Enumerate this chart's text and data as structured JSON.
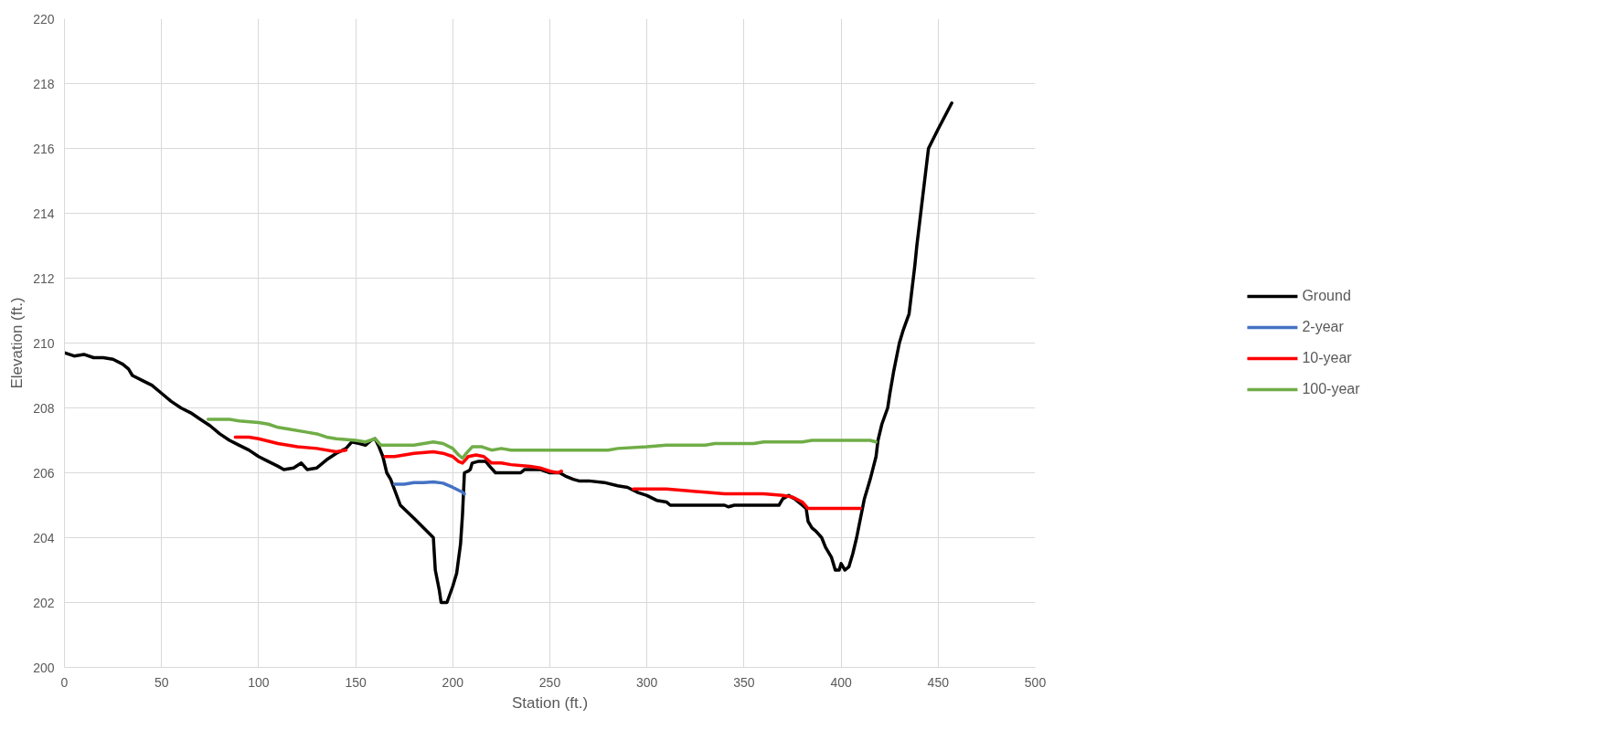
{
  "chart_data": {
    "type": "line",
    "xlabel": "Station (ft.)",
    "ylabel": "Elevation (ft.)",
    "xlim": [
      0,
      500
    ],
    "xticks": [
      0,
      50,
      100,
      150,
      200,
      250,
      300,
      350,
      400,
      450,
      500
    ],
    "ylim": [
      200,
      220
    ],
    "yticks": [
      200,
      202,
      204,
      206,
      208,
      210,
      212,
      214,
      216,
      218,
      220
    ],
    "grid": true,
    "legend": "right",
    "marker": "none",
    "line_style": "solid",
    "series": [
      {
        "name": "Ground",
        "color": "#000000",
        "x": [
          0,
          5,
          10,
          15,
          20,
          25,
          30,
          33,
          35,
          40,
          45,
          50,
          55,
          60,
          65,
          70,
          75,
          80,
          85,
          90,
          95,
          100,
          105,
          110,
          113,
          118,
          122,
          125,
          130,
          135,
          140,
          145,
          148,
          152,
          155,
          158,
          160,
          162,
          164,
          166,
          168,
          173,
          180,
          190,
          191,
          193,
          194,
          197,
          200,
          202,
          204,
          205,
          206,
          208,
          209,
          210,
          213,
          217,
          219,
          222,
          230,
          235,
          237,
          245,
          250,
          255,
          258,
          262,
          265,
          270,
          278,
          285,
          290,
          295,
          300,
          305,
          310,
          312,
          320,
          340,
          342,
          345,
          360,
          368,
          370,
          373,
          376,
          380,
          382,
          383,
          385,
          387,
          390,
          392,
          395,
          397,
          399,
          400,
          402,
          404,
          406,
          408,
          410,
          412,
          415,
          418,
          419,
          421,
          424,
          425,
          427,
          430,
          432,
          435,
          436,
          438,
          439,
          441,
          443,
          445,
          450,
          457
        ],
        "values": [
          209.7,
          209.6,
          209.65,
          209.55,
          209.55,
          209.5,
          209.35,
          209.2,
          209.0,
          208.85,
          208.7,
          208.45,
          208.2,
          208.0,
          207.85,
          207.65,
          207.45,
          207.2,
          207.0,
          206.85,
          206.7,
          206.5,
          206.35,
          206.2,
          206.1,
          206.15,
          206.3,
          206.1,
          206.15,
          206.4,
          206.6,
          206.75,
          206.95,
          206.9,
          206.85,
          207.0,
          207.05,
          206.8,
          206.5,
          206.0,
          205.8,
          205.0,
          204.6,
          204.0,
          203.0,
          202.4,
          202.0,
          202.0,
          202.5,
          202.9,
          203.8,
          204.7,
          206.0,
          206.05,
          206.1,
          206.3,
          206.35,
          206.35,
          206.2,
          206.0,
          206.0,
          206.0,
          206.1,
          206.1,
          206.0,
          206.0,
          205.9,
          205.8,
          205.75,
          205.75,
          205.7,
          205.6,
          205.55,
          205.4,
          205.3,
          205.15,
          205.1,
          205.0,
          205.0,
          205.0,
          204.95,
          205.0,
          205.0,
          205.0,
          205.2,
          205.3,
          205.2,
          205.0,
          204.9,
          204.5,
          204.3,
          204.2,
          204.0,
          203.7,
          203.4,
          203.0,
          203.0,
          203.2,
          203.0,
          203.1,
          203.5,
          204.0,
          204.6,
          205.2,
          205.8,
          206.5,
          207.0,
          207.5,
          208.0,
          208.4,
          209.1,
          210.0,
          210.4,
          210.9,
          211.4,
          212.4,
          213.0,
          214.0,
          215.0,
          216.0,
          216.6,
          217.4
        ]
      },
      {
        "name": "2-year",
        "color": "#4472c4",
        "x": [
          170,
          175,
          180,
          185,
          190,
          195,
          200,
          205,
          206
        ],
        "values": [
          205.65,
          205.65,
          205.7,
          205.7,
          205.72,
          205.68,
          205.55,
          205.4,
          205.35
        ]
      },
      {
        "name": "10-year",
        "color": "#ff0000",
        "x": [
          88,
          95,
          100,
          110,
          120,
          130,
          140,
          145,
          155,
          165,
          170,
          180,
          190,
          195,
          200,
          203,
          205,
          208,
          212,
          216,
          220,
          225,
          230,
          240,
          245,
          250,
          254,
          256,
          275,
          293,
          310,
          320,
          330,
          340,
          350,
          360,
          370,
          375,
          380,
          383,
          400,
          410
        ],
        "values": [
          207.1,
          207.1,
          207.05,
          206.9,
          206.8,
          206.75,
          206.65,
          206.7,
          null,
          206.5,
          206.5,
          206.6,
          206.65,
          206.6,
          206.5,
          206.35,
          206.3,
          206.5,
          206.55,
          206.5,
          206.3,
          206.3,
          206.25,
          206.2,
          206.15,
          206.05,
          206.0,
          206.05,
          null,
          205.5,
          205.5,
          205.45,
          205.4,
          205.35,
          205.35,
          205.35,
          205.3,
          205.25,
          205.1,
          204.9,
          204.9,
          204.9
        ]
      },
      {
        "name": "100-year",
        "color": "#70ad47",
        "x": [
          74,
          80,
          85,
          90,
          100,
          105,
          110,
          115,
          125,
          130,
          135,
          140,
          150,
          155,
          160,
          163,
          170,
          180,
          185,
          190,
          195,
          200,
          203,
          205,
          207,
          210,
          215,
          220,
          225,
          230,
          280,
          285,
          300,
          310,
          330,
          335,
          355,
          360,
          380,
          385,
          415,
          418
        ],
        "values": [
          207.65,
          207.65,
          207.65,
          207.6,
          207.55,
          207.5,
          207.4,
          207.35,
          207.25,
          207.2,
          207.1,
          207.05,
          207.0,
          206.95,
          207.05,
          206.85,
          206.85,
          206.85,
          206.9,
          206.95,
          206.9,
          206.75,
          206.55,
          206.45,
          206.6,
          206.8,
          206.8,
          206.7,
          206.75,
          206.7,
          206.7,
          206.75,
          206.8,
          206.85,
          206.85,
          206.9,
          206.9,
          206.95,
          206.95,
          207.0,
          207.0,
          206.95
        ]
      }
    ]
  }
}
